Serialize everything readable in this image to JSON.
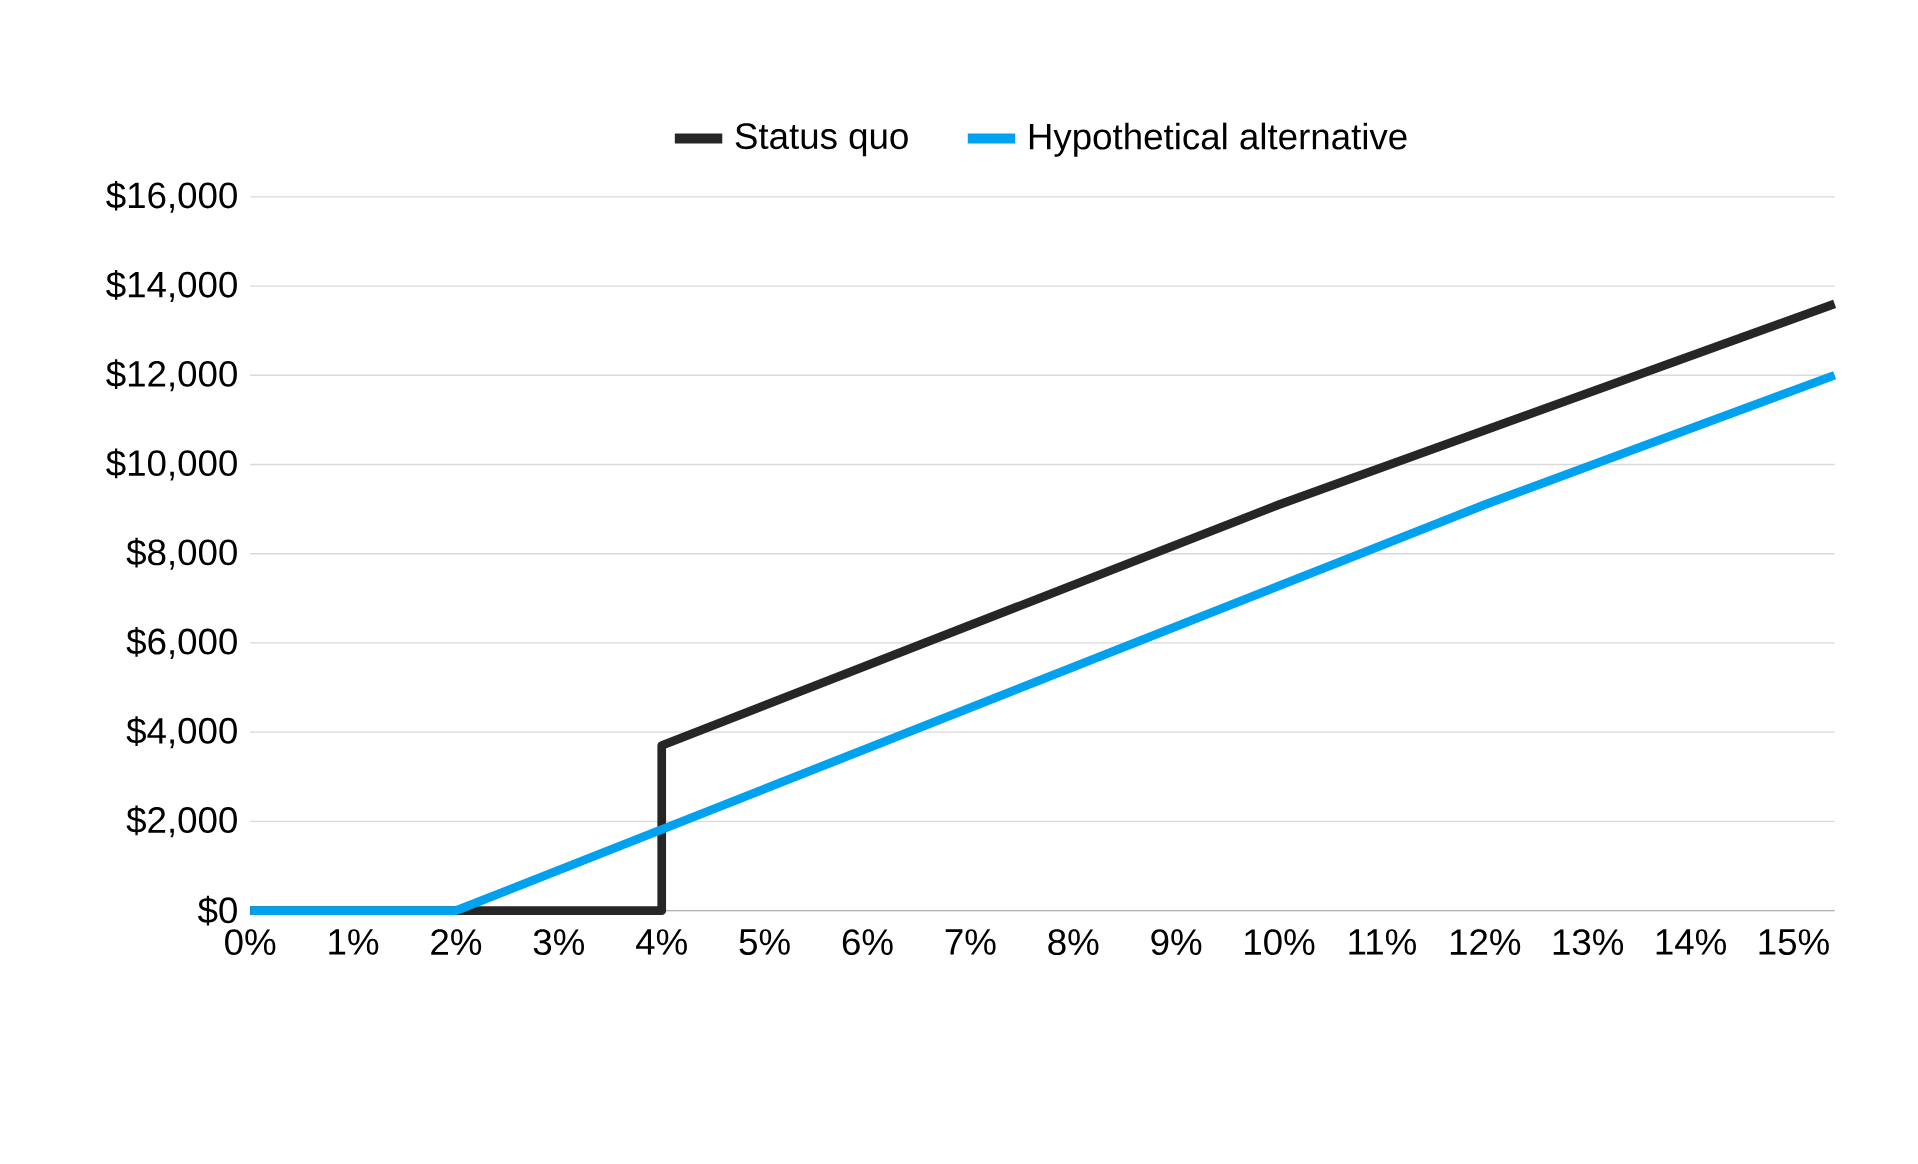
{
  "chart_data": {
    "type": "line",
    "series": [
      {
        "name": "Status quo",
        "color": "#262626",
        "x": [
          0,
          4,
          4,
          10,
          15.4
        ],
        "values": [
          0,
          0,
          3700,
          9100,
          13600
        ]
      },
      {
        "name": "Hypothetical alternative",
        "color": "#00a2f0",
        "x": [
          0,
          2,
          12,
          15.4
        ],
        "values": [
          0,
          0,
          9100,
          12000
        ]
      }
    ],
    "xlim": [
      0,
      15.4
    ],
    "ylim": [
      0,
      16000
    ],
    "xticks": [
      {
        "value": 0,
        "label": "0%"
      },
      {
        "value": 1,
        "label": "1%"
      },
      {
        "value": 2,
        "label": "2%"
      },
      {
        "value": 3,
        "label": "3%"
      },
      {
        "value": 4,
        "label": "4%"
      },
      {
        "value": 5,
        "label": "5%"
      },
      {
        "value": 6,
        "label": "6%"
      },
      {
        "value": 7,
        "label": "7%"
      },
      {
        "value": 8,
        "label": "8%"
      },
      {
        "value": 9,
        "label": "9%"
      },
      {
        "value": 10,
        "label": "10%"
      },
      {
        "value": 11,
        "label": "11%"
      },
      {
        "value": 12,
        "label": "12%"
      },
      {
        "value": 13,
        "label": "13%"
      },
      {
        "value": 14,
        "label": "14%"
      },
      {
        "value": 15,
        "label": "15%"
      }
    ],
    "yticks": [
      {
        "value": 0,
        "label": "$0"
      },
      {
        "value": 2000,
        "label": "$2,000"
      },
      {
        "value": 4000,
        "label": "$4,000"
      },
      {
        "value": 6000,
        "label": "$6,000"
      },
      {
        "value": 8000,
        "label": "$8,000"
      },
      {
        "value": 10000,
        "label": "$10,000"
      },
      {
        "value": 12000,
        "label": "$12,000"
      },
      {
        "value": 14000,
        "label": "$14,000"
      },
      {
        "value": 16000,
        "label": "$16,000"
      }
    ],
    "grid": "y",
    "legend": "top",
    "line_style": "solid"
  }
}
